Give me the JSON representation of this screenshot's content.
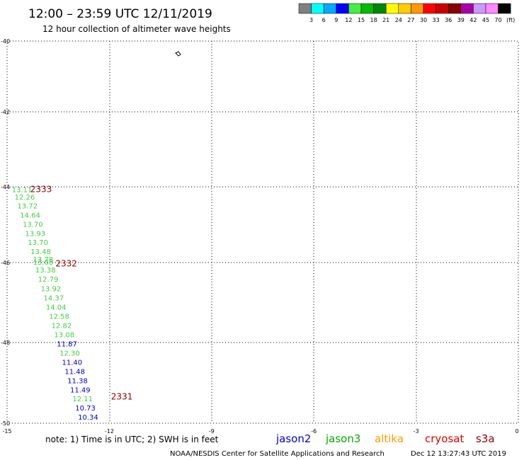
{
  "header": {
    "title": "12:00 – 23:59 UTC 12/11/2019",
    "subtitle": "12 hour collection of altimeter wave heights"
  },
  "colorbar": {
    "colors": [
      "#808080",
      "#00ffff",
      "#00aaff",
      "#0000ff",
      "#44ee44",
      "#00bb00",
      "#008800",
      "#ffff00",
      "#ffcc00",
      "#ff9900",
      "#ff0000",
      "#cc0000",
      "#880000",
      "#aa00aa",
      "#cc99ff",
      "#ff88ff",
      "#000000"
    ],
    "labels": [
      "3",
      "6",
      "9",
      "12",
      "15",
      "18",
      "21",
      "24",
      "27",
      "30",
      "33",
      "36",
      "39",
      "42",
      "45",
      "70",
      "(ft)"
    ]
  },
  "map": {
    "x_ticks": [
      "-15",
      "-12",
      "-9",
      "-6",
      "-3",
      "0"
    ],
    "y_ticks": [
      "-40",
      "-42",
      "-44",
      "-46",
      "-48",
      "-50"
    ],
    "satellite_colors": {
      "jason2": "#0000cc",
      "jason3": "#44cc44",
      "cryosat": "#880000"
    },
    "observations": [
      {
        "lon": -14.86,
        "lat": -43.95,
        "value": "13.11",
        "sat": "jason3"
      },
      {
        "lon": -14.78,
        "lat": -44.15,
        "value": "12.26",
        "sat": "jason3"
      },
      {
        "lon": -14.7,
        "lat": -44.38,
        "value": "13.72",
        "sat": "jason3"
      },
      {
        "lon": -14.62,
        "lat": -44.62,
        "value": "14.64",
        "sat": "jason3"
      },
      {
        "lon": -14.54,
        "lat": -44.86,
        "value": "13.70",
        "sat": "jason3"
      },
      {
        "lon": -14.47,
        "lat": -45.1,
        "value": "13.93",
        "sat": "jason3"
      },
      {
        "lon": -14.39,
        "lat": -45.33,
        "value": "13.70",
        "sat": "jason3"
      },
      {
        "lon": -14.31,
        "lat": -45.57,
        "value": "13.48",
        "sat": "jason3"
      },
      {
        "lon": -14.24,
        "lat": -45.78,
        "value": "13.78",
        "sat": "jason3"
      },
      {
        "lon": -14.24,
        "lat": -45.85,
        "value": "13.08",
        "sat": "jason3"
      },
      {
        "lon": -14.17,
        "lat": -46.06,
        "value": "13.38",
        "sat": "jason3"
      },
      {
        "lon": -14.09,
        "lat": -46.3,
        "value": "12.79",
        "sat": "jason3"
      },
      {
        "lon": -14.01,
        "lat": -46.55,
        "value": "13.92",
        "sat": "jason3"
      },
      {
        "lon": -13.93,
        "lat": -46.79,
        "value": "14.37",
        "sat": "jason3"
      },
      {
        "lon": -13.86,
        "lat": -47.03,
        "value": "14.04",
        "sat": "jason3"
      },
      {
        "lon": -13.77,
        "lat": -47.27,
        "value": "12.58",
        "sat": "jason3"
      },
      {
        "lon": -13.7,
        "lat": -47.51,
        "value": "12.82",
        "sat": "jason3"
      },
      {
        "lon": -13.62,
        "lat": -47.75,
        "value": "13.08",
        "sat": "jason3"
      },
      {
        "lon": -13.54,
        "lat": -47.99,
        "value": "11.87",
        "sat": "jason2"
      },
      {
        "lon": -13.46,
        "lat": -48.23,
        "value": "12.30",
        "sat": "jason3"
      },
      {
        "lon": -13.39,
        "lat": -48.47,
        "value": "11.40",
        "sat": "jason2"
      },
      {
        "lon": -13.31,
        "lat": -48.71,
        "value": "11.48",
        "sat": "jason2"
      },
      {
        "lon": -13.23,
        "lat": -48.95,
        "value": "11.38",
        "sat": "jason2"
      },
      {
        "lon": -13.15,
        "lat": -49.19,
        "value": "11.49",
        "sat": "jason2"
      },
      {
        "lon": -13.08,
        "lat": -49.43,
        "value": "12.11",
        "sat": "jason3"
      },
      {
        "lon": -13.0,
        "lat": -49.67,
        "value": "10.73",
        "sat": "jason2"
      },
      {
        "lon": -12.92,
        "lat": -49.91,
        "value": "10.34",
        "sat": "jason2"
      }
    ],
    "times": [
      {
        "lon": -14.32,
        "lat": -43.95,
        "text": "2333"
      },
      {
        "lon": -13.58,
        "lat": -45.9,
        "text": "2332"
      },
      {
        "lon": -11.95,
        "lat": -49.38,
        "text": "2331"
      }
    ]
  },
  "footer": {
    "note": "note: 1) Time is in UTC; 2) SWH is in feet",
    "legend": [
      {
        "label": "jason2",
        "color": "#0000cc"
      },
      {
        "label": "jason3",
        "color": "#00aa00"
      },
      {
        "label": "altika",
        "color": "#ff9900"
      },
      {
        "label": "cryosat",
        "color": "#dd0000"
      },
      {
        "label": "s3a",
        "color": "#880000"
      }
    ],
    "credit": "NOAA/NESDIS Center for Satellite Applications and Research",
    "generated": "Dec 12 13:27:43 UTC 2019"
  }
}
